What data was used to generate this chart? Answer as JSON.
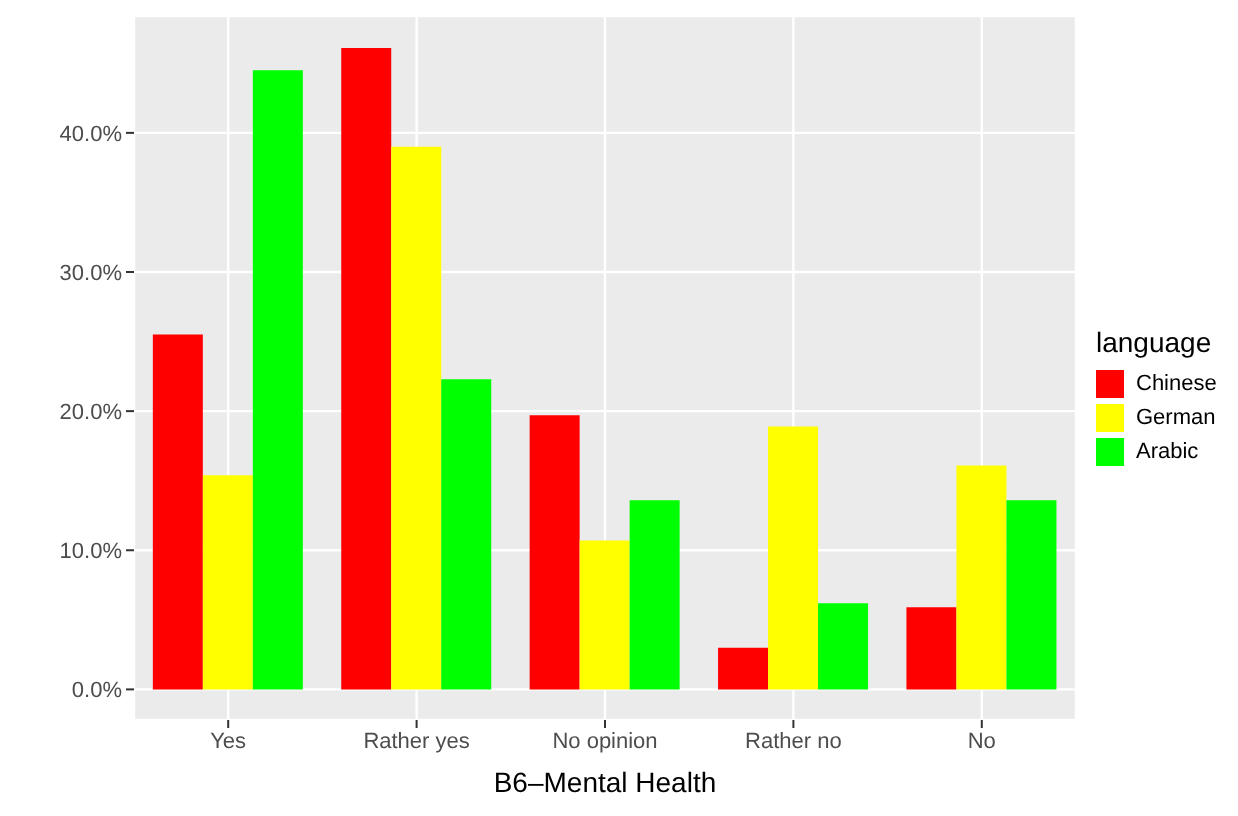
{
  "chart_data": {
    "type": "bar",
    "xlabel": "B6–Mental Health",
    "legend_title": "language",
    "categories": [
      "Yes",
      "Rather yes",
      "No opinion",
      "Rather no",
      "No"
    ],
    "series": [
      {
        "name": "Chinese",
        "color": "#ff0000",
        "values": [
          25.5,
          46.1,
          19.7,
          3.0,
          5.9
        ]
      },
      {
        "name": "German",
        "color": "#ffff00",
        "values": [
          15.4,
          39.0,
          10.7,
          18.9,
          16.1
        ]
      },
      {
        "name": "Arabic",
        "color": "#00ff00",
        "values": [
          44.5,
          22.3,
          13.6,
          6.2,
          13.6
        ]
      }
    ],
    "ylim": [
      -2.2,
      48.4
    ],
    "yticks": [
      {
        "value": 0,
        "label": "0.0%"
      },
      {
        "value": 10,
        "label": "10.0%"
      },
      {
        "value": 20,
        "label": "20.0%"
      },
      {
        "value": 30,
        "label": "30.0%"
      },
      {
        "value": 40,
        "label": "40.0%"
      }
    ],
    "grid": true,
    "legend": "right"
  }
}
